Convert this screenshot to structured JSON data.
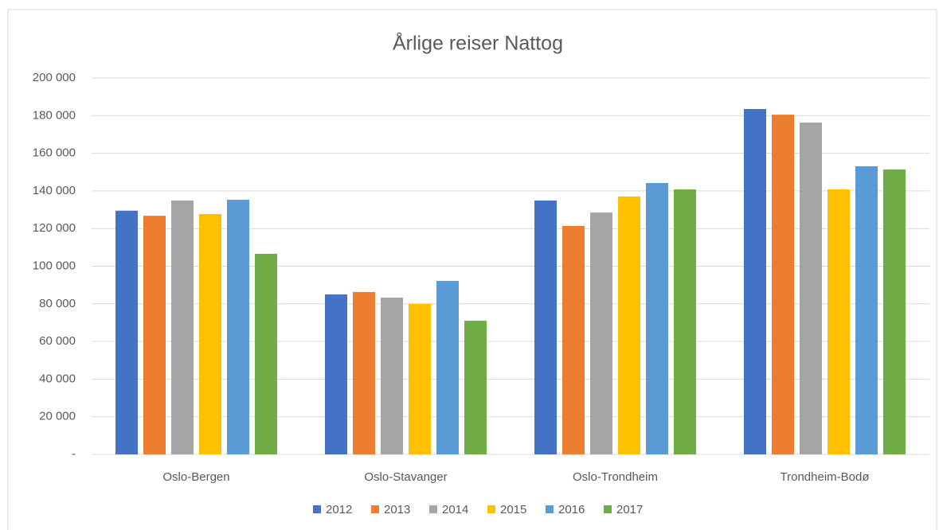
{
  "chart_data": {
    "type": "bar",
    "title": "Årlige reiser Nattog",
    "categories": [
      "Oslo-Bergen",
      "Oslo-Stavanger",
      "Oslo-Trondheim",
      "Trondheim-Bodø"
    ],
    "series": [
      {
        "name": "2012",
        "color": "#4472c4",
        "values": [
          129500,
          85000,
          134900,
          183500
        ]
      },
      {
        "name": "2013",
        "color": "#ed7d31",
        "values": [
          126800,
          86300,
          121400,
          180500
        ]
      },
      {
        "name": "2014",
        "color": "#a5a5a5",
        "values": [
          134900,
          83300,
          128500,
          176300
        ]
      },
      {
        "name": "2015",
        "color": "#ffc000",
        "values": [
          127700,
          79900,
          137000,
          140800
        ]
      },
      {
        "name": "2016",
        "color": "#5b9bd5",
        "values": [
          135300,
          92200,
          144200,
          153100
        ]
      },
      {
        "name": "2017",
        "color": "#70ad47",
        "values": [
          106600,
          71000,
          140800,
          151400
        ]
      }
    ],
    "ylim": [
      0,
      200000
    ],
    "yticks": [
      {
        "value": 0,
        "label": "-"
      },
      {
        "value": 20000,
        "label": "20 000"
      },
      {
        "value": 40000,
        "label": "40 000"
      },
      {
        "value": 60000,
        "label": "60 000"
      },
      {
        "value": 80000,
        "label": "80 000"
      },
      {
        "value": 100000,
        "label": "100 000"
      },
      {
        "value": 120000,
        "label": "120 000"
      },
      {
        "value": 140000,
        "label": "140 000"
      },
      {
        "value": 160000,
        "label": "160 000"
      },
      {
        "value": 180000,
        "label": "180 000"
      },
      {
        "value": 200000,
        "label": "200 000"
      }
    ],
    "grid": true,
    "legend": "bottom"
  }
}
